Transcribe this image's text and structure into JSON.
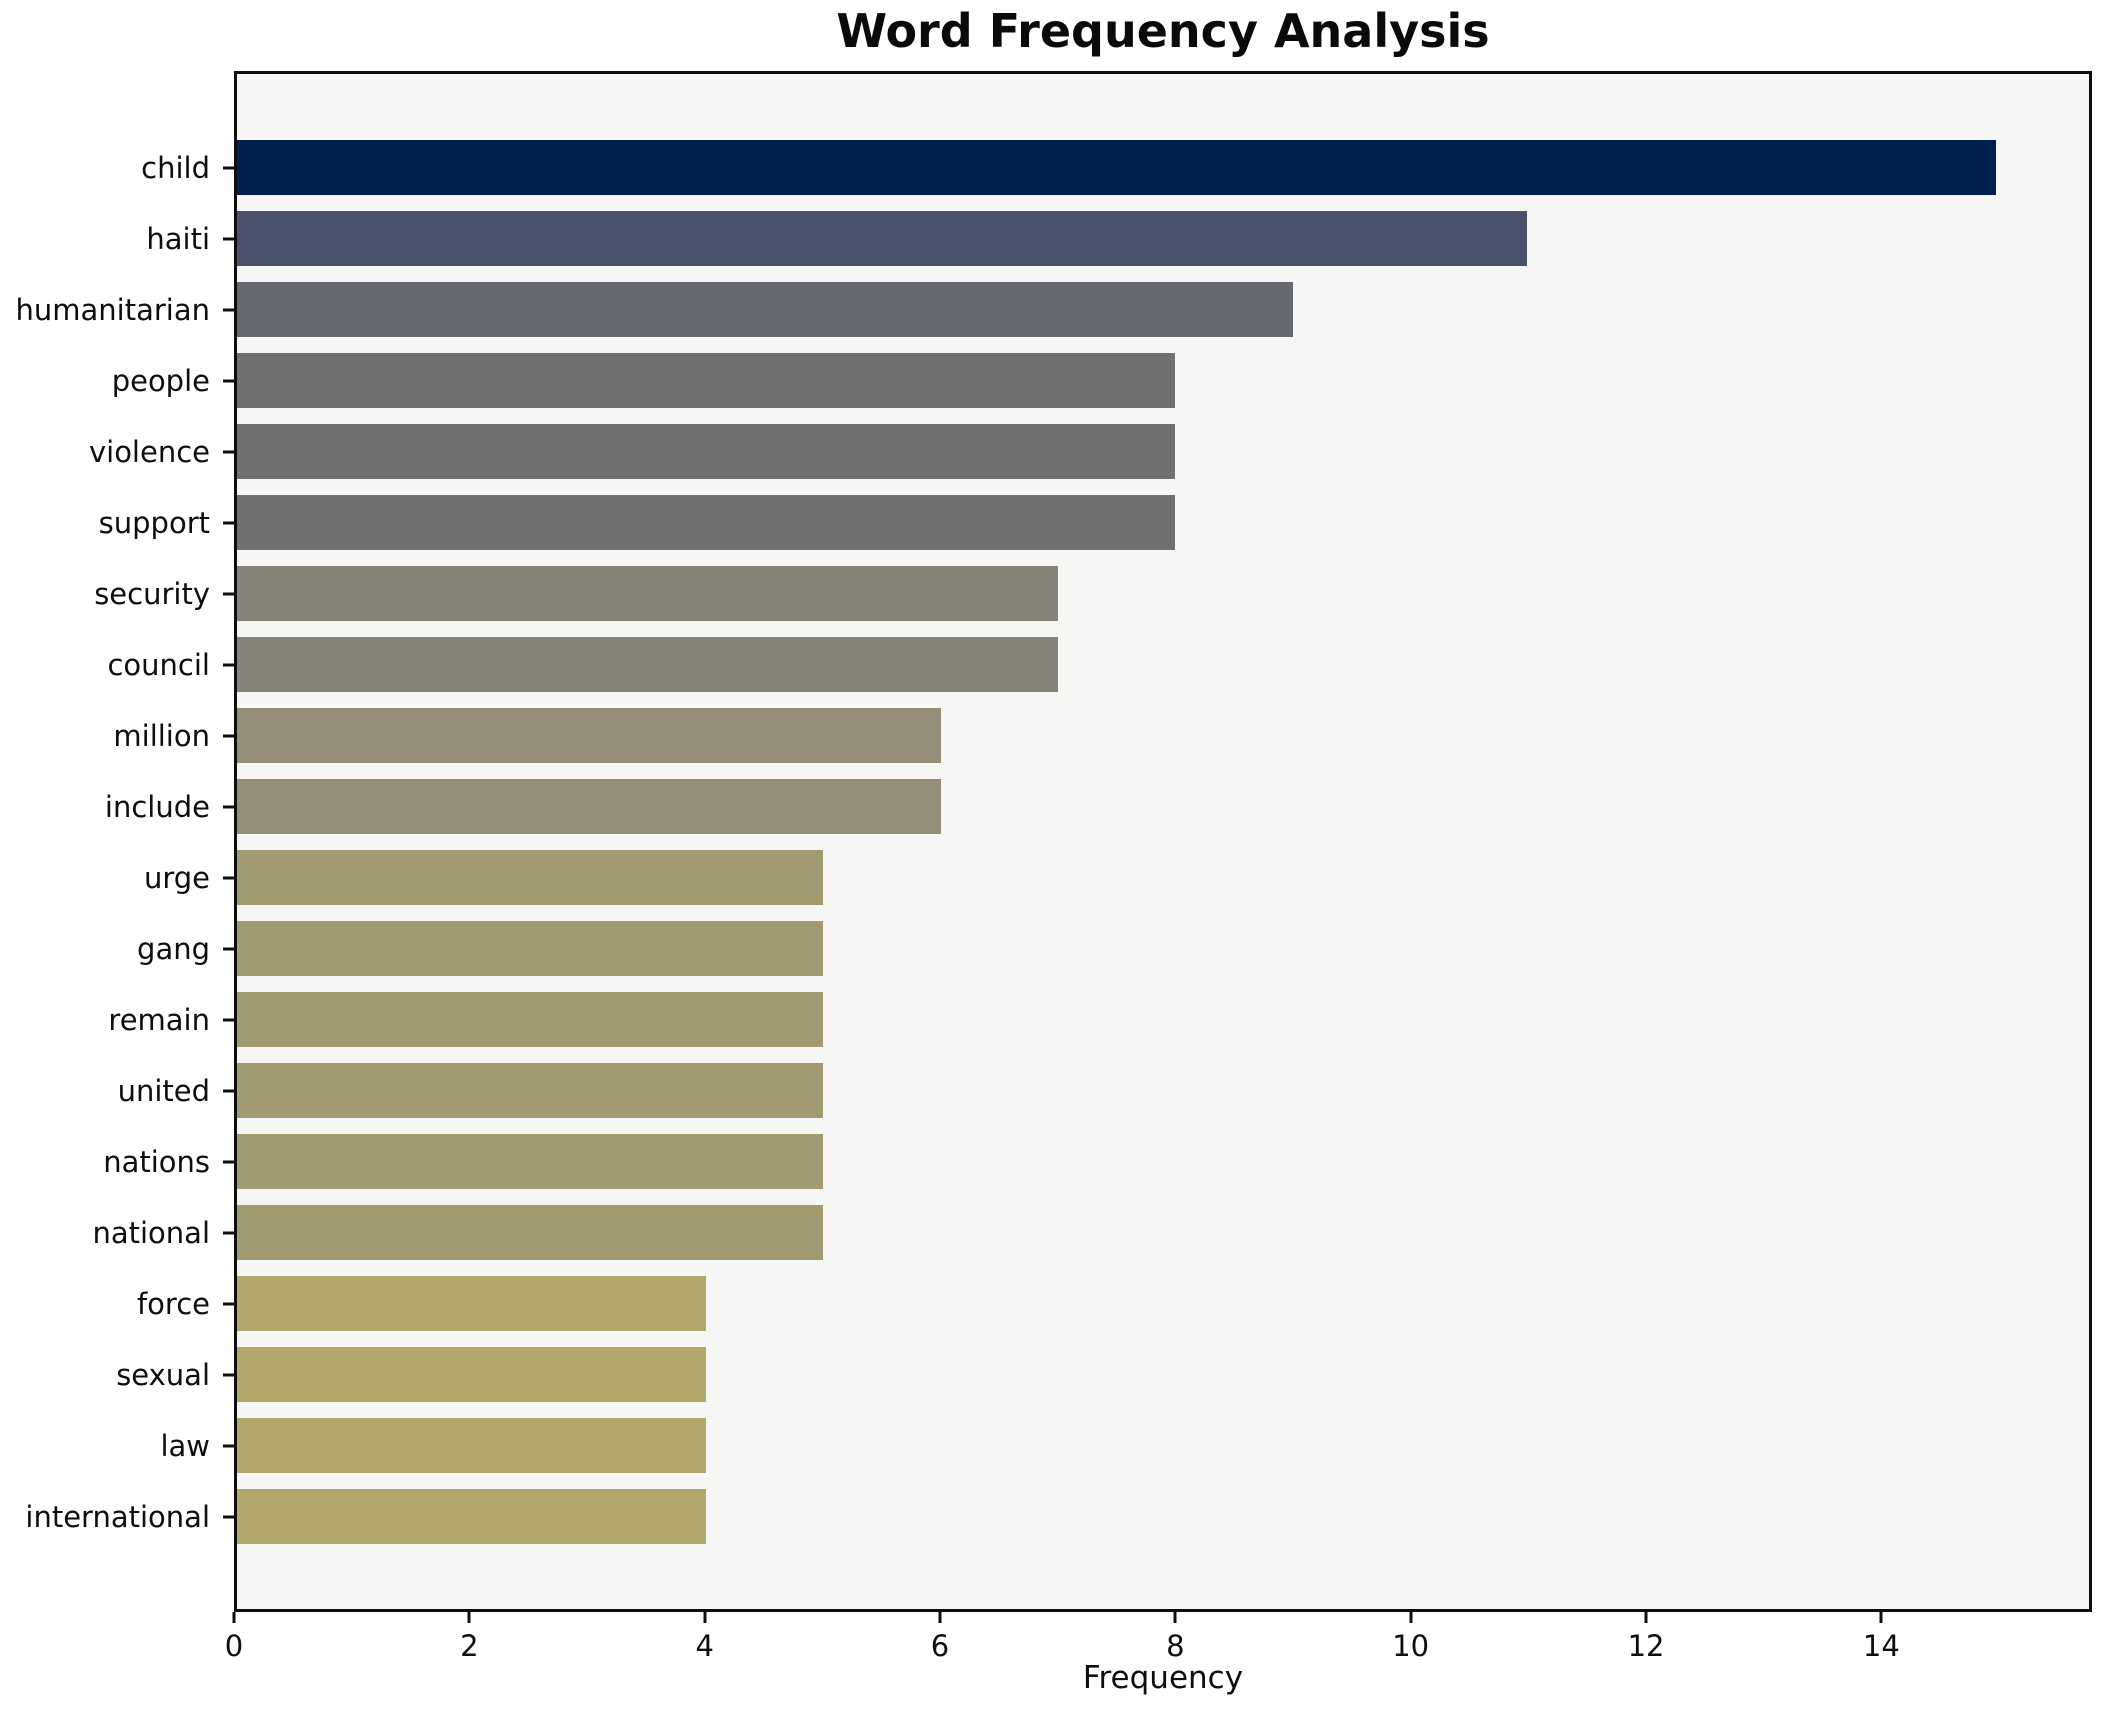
{
  "chart_data": {
    "type": "bar",
    "orientation": "horizontal",
    "title": "Word Frequency Analysis",
    "xlabel": "Frequency",
    "ylabel": "",
    "grid": false,
    "legend": "none",
    "xlim": [
      0,
      15.79
    ],
    "xticks": [
      0,
      2,
      4,
      6,
      8,
      10,
      12,
      14
    ],
    "categories": [
      "child",
      "haiti",
      "humanitarian",
      "people",
      "violence",
      "support",
      "security",
      "council",
      "million",
      "include",
      "urge",
      "gang",
      "remain",
      "united",
      "nations",
      "national",
      "force",
      "sexual",
      "law",
      "international"
    ],
    "values": [
      15,
      11,
      9,
      8,
      8,
      8,
      7,
      7,
      6,
      6,
      5,
      5,
      5,
      5,
      5,
      5,
      4,
      4,
      4,
      4
    ],
    "bar_colors": [
      "#00214E",
      "#4A526B",
      "#656870",
      "#707072",
      "#707072",
      "#707072",
      "#858278",
      "#858278",
      "#948E78",
      "#948E78",
      "#A29A71",
      "#A29A71",
      "#A29A71",
      "#A29A71",
      "#A29A71",
      "#A29A71",
      "#B3A86B",
      "#B3A86B",
      "#B3A86B",
      "#B3A86B"
    ],
    "colors": {
      "figure_background": "#ffffff",
      "axes_background": "#f6f6f4",
      "spine": "#0e0e0e",
      "text": "#0a0a0a"
    }
  }
}
